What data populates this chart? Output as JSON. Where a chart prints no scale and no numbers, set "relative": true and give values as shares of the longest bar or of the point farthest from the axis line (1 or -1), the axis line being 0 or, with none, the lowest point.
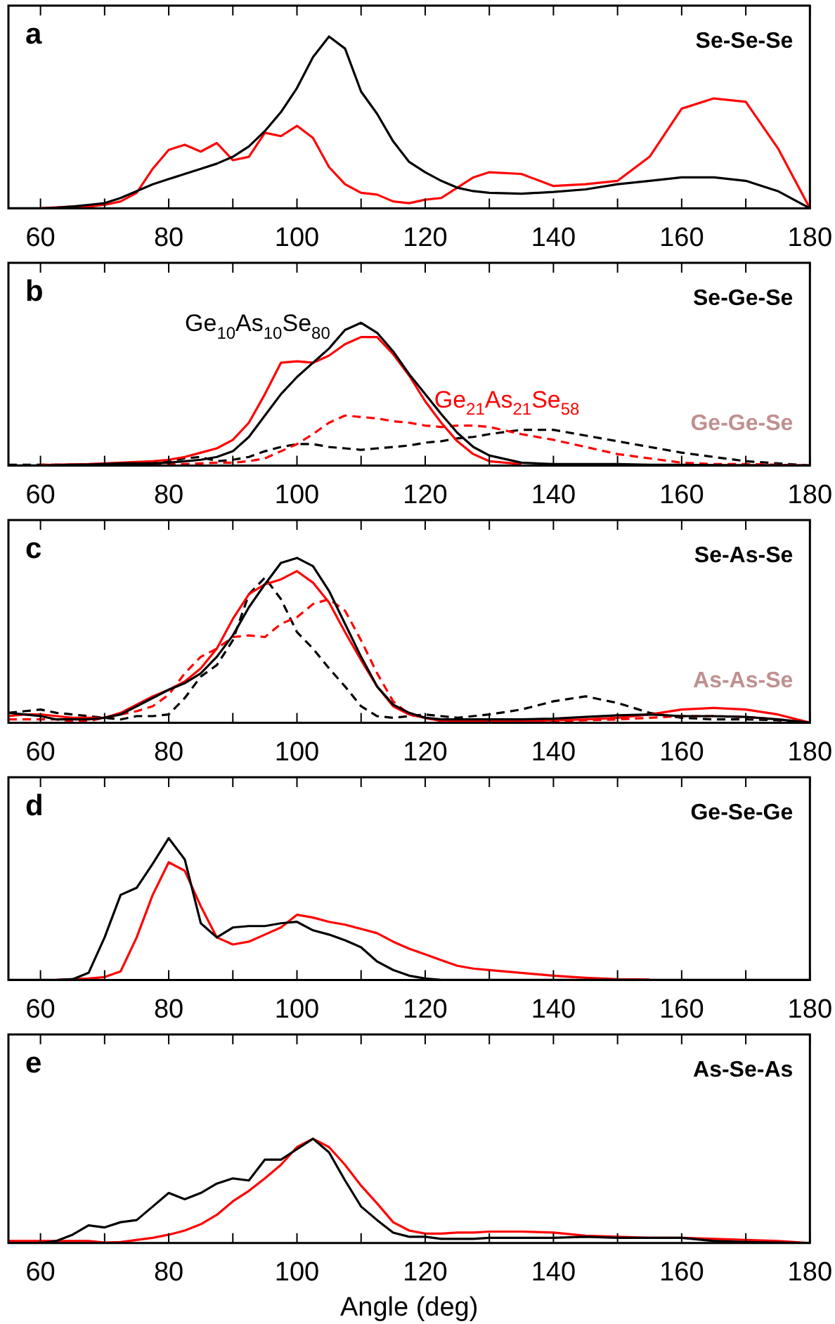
{
  "chart_data": [
    {
      "type": "line",
      "title": "a",
      "annotations": [
        "Se-Se-Se"
      ],
      "relative": true,
      "legend": false,
      "xlim": [
        55,
        180
      ],
      "xticks": [
        60,
        {
          "value": 70,
          "label": null
        },
        80,
        {
          "value": 90,
          "label": null
        },
        100,
        {
          "value": 110,
          "label": null
        },
        120,
        {
          "value": 130,
          "label": null
        },
        140,
        {
          "value": 150,
          "label": null
        },
        160,
        {
          "value": 170,
          "label": null
        },
        180
      ],
      "x": [
        55,
        57.5,
        60,
        62.5,
        65,
        67.5,
        70,
        72.5,
        75,
        77.5,
        80,
        82.5,
        85,
        87.5,
        90,
        92.5,
        95,
        97.5,
        100,
        102.5,
        105,
        107.5,
        110,
        112.5,
        115,
        117.5,
        120,
        122.5,
        125,
        127.5,
        130,
        135,
        140,
        145,
        150,
        155,
        160,
        165,
        170,
        175,
        180
      ],
      "series": [
        {
          "color": "#000000",
          "values": [
            0,
            0,
            0,
            0.003,
            0.01,
            0.02,
            0.03,
            0.06,
            0.1,
            0.14,
            0.17,
            0.2,
            0.23,
            0.26,
            0.3,
            0.36,
            0.45,
            0.56,
            0.7,
            0.88,
            1,
            0.93,
            0.68,
            0.55,
            0.39,
            0.27,
            0.21,
            0.16,
            0.12,
            0.1,
            0.09,
            0.085,
            0.095,
            0.11,
            0.14,
            0.16,
            0.18,
            0.18,
            0.16,
            0.1,
            0
          ]
        },
        {
          "color": "#ff0000",
          "values": [
            null,
            null,
            0,
            0.005,
            0.01,
            0.01,
            0.02,
            0.04,
            0.09,
            0.23,
            0.34,
            0.37,
            0.33,
            0.38,
            0.28,
            0.3,
            0.44,
            0.42,
            0.48,
            0.41,
            0.24,
            0.14,
            0.09,
            0.08,
            0.04,
            0.03,
            0.05,
            0.06,
            0.12,
            0.18,
            0.21,
            0.2,
            0.13,
            0.14,
            0.16,
            0.3,
            0.58,
            0.64,
            0.62,
            0.35,
            0
          ]
        }
      ]
    },
    {
      "type": "line",
      "title": "b",
      "annotations": [
        "Se-Ge-Se",
        "Ge-Ge-Se"
      ],
      "relative": true,
      "legend": false,
      "xlim": [
        55,
        180
      ],
      "xticks": [
        60,
        {
          "value": 70,
          "label": null
        },
        80,
        {
          "value": 90,
          "label": null
        },
        100,
        {
          "value": 110,
          "label": null
        },
        120,
        {
          "value": 130,
          "label": null
        },
        140,
        {
          "value": 150,
          "label": null
        },
        160,
        {
          "value": 170,
          "label": null
        },
        180
      ],
      "x": [
        55,
        57.5,
        60,
        62.5,
        65,
        67.5,
        70,
        72.5,
        75,
        77.5,
        80,
        82.5,
        85,
        87.5,
        90,
        92.5,
        95,
        97.5,
        100,
        102.5,
        105,
        107.5,
        110,
        112.5,
        115,
        117.5,
        120,
        122.5,
        125,
        127.5,
        130,
        135,
        140,
        145,
        150,
        155,
        160,
        165,
        170,
        175,
        180
      ],
      "series": [
        {
          "name": "Ge$_{10}$As$_{10}$Se$_{80}$",
          "color": "#000000",
          "values": [
            0,
            0,
            0,
            0.003,
            0.005,
            0.007,
            0.01,
            0.015,
            0.015,
            0.015,
            0.02,
            0.03,
            0.04,
            0.06,
            0.1,
            0.2,
            0.35,
            0.5,
            0.62,
            0.72,
            0.82,
            0.95,
            1,
            0.93,
            0.8,
            0.64,
            0.5,
            0.36,
            0.23,
            0.13,
            0.07,
            0.02,
            0.01,
            0.01,
            0.01,
            0.005,
            0.005,
            0.003,
            0.002,
            0.001,
            0
          ]
        },
        {
          "name": "Ge$_{21}$As$_{21}$Se$_{58}$",
          "color": "#ff0000",
          "values": [
            null,
            null,
            0.003,
            0.005,
            0.008,
            0.01,
            0.015,
            0.02,
            0.025,
            0.03,
            0.04,
            0.06,
            0.09,
            0.12,
            0.18,
            0.3,
            0.5,
            0.72,
            0.73,
            0.72,
            0.77,
            0.85,
            0.9,
            0.9,
            0.78,
            0.63,
            0.45,
            0.3,
            0.17,
            0.08,
            0.03,
            0.01,
            null,
            null,
            null,
            0.002,
            0.002,
            0.001,
            0.001,
            0.001,
            0
          ]
        },
        {
          "color": "#ff0000",
          "line_style": "dashed",
          "values": [
            null,
            null,
            0.005,
            0.005,
            0.005,
            0.005,
            0.005,
            0.005,
            0.005,
            0.005,
            0.01,
            0.01,
            0.015,
            0.02,
            0.02,
            0.03,
            0.05,
            0.1,
            0.15,
            0.22,
            0.3,
            0.35,
            0.34,
            0.33,
            0.31,
            0.3,
            0.28,
            0.27,
            0.28,
            0.28,
            0.27,
            0.22,
            0.18,
            0.13,
            0.08,
            0.05,
            0.02,
            0.01,
            0.01,
            0.005,
            0
          ]
        },
        {
          "color": "#000000",
          "line_style": "dashed",
          "values": [
            0.005,
            0.005,
            0.005,
            0.005,
            0.005,
            0.005,
            0.005,
            0.01,
            0.01,
            0.02,
            0.03,
            0.05,
            0.06,
            0.03,
            0.04,
            0.06,
            0.1,
            0.13,
            0.15,
            0.15,
            0.13,
            0.12,
            0.11,
            0.12,
            0.13,
            0.14,
            0.16,
            0.17,
            0.19,
            0.2,
            0.22,
            0.25,
            0.25,
            0.21,
            0.17,
            0.13,
            0.09,
            0.06,
            0.03,
            0.015,
            0
          ]
        }
      ]
    },
    {
      "type": "line",
      "title": "c",
      "annotations": [
        "Se-As-Se",
        "As-As-Se"
      ],
      "relative": true,
      "legend": false,
      "xlim": [
        55,
        180
      ],
      "xticks": [
        60,
        {
          "value": 70,
          "label": null
        },
        80,
        {
          "value": 90,
          "label": null
        },
        100,
        {
          "value": 110,
          "label": null
        },
        120,
        {
          "value": 130,
          "label": null
        },
        140,
        {
          "value": 150,
          "label": null
        },
        160,
        {
          "value": 170,
          "label": null
        },
        180
      ],
      "x": [
        55,
        57.5,
        60,
        62.5,
        65,
        67.5,
        70,
        72.5,
        75,
        77.5,
        80,
        82.5,
        85,
        87.5,
        90,
        92.5,
        95,
        97.5,
        100,
        102.5,
        105,
        107.5,
        110,
        112.5,
        115,
        117.5,
        120,
        122.5,
        125,
        127.5,
        130,
        135,
        140,
        145,
        150,
        155,
        160,
        165,
        170,
        175,
        180
      ],
      "series": [
        {
          "color": "#000000",
          "values": [
            0.06,
            0.05,
            0.04,
            0.02,
            0.02,
            0.02,
            0.03,
            0.05,
            0.1,
            0.15,
            0.2,
            0.24,
            0.3,
            0.4,
            0.53,
            0.7,
            0.84,
            0.97,
            1,
            0.95,
            0.8,
            0.6,
            0.4,
            0.22,
            0.11,
            0.06,
            0.03,
            0.02,
            0.02,
            0.02,
            0.02,
            0.02,
            0.025,
            0.035,
            0.045,
            0.05,
            0.04,
            0.04,
            0.035,
            0.02,
            0
          ]
        },
        {
          "color": "#ff0000",
          "values": [
            0.04,
            0.05,
            0.05,
            0.04,
            0.03,
            0.03,
            0.03,
            0.06,
            0.11,
            0.16,
            0.2,
            0.25,
            0.33,
            0.45,
            0.63,
            0.78,
            0.84,
            0.87,
            0.92,
            0.85,
            0.73,
            0.55,
            0.38,
            0.22,
            0.1,
            0.05,
            0.03,
            0.01,
            0.01,
            0.01,
            0.01,
            0.01,
            0.015,
            0.02,
            0.03,
            0.05,
            0.08,
            0.09,
            0.08,
            0.05,
            0
          ]
        },
        {
          "color": "#ff0000",
          "line_style": "dashed",
          "values": [
            0.02,
            0.02,
            0.02,
            0.02,
            0.01,
            0.01,
            0.03,
            0.05,
            0.07,
            0.1,
            0.17,
            0.3,
            0.4,
            0.45,
            0.52,
            0.53,
            0.52,
            0.6,
            0.64,
            0.72,
            0.75,
            0.68,
            0.5,
            0.3,
            0.13,
            0.05,
            0.03,
            0.01,
            0.005,
            0.005,
            0.005,
            0.005,
            0.01,
            0.015,
            0.02,
            0.03,
            0.04,
            0.04,
            0.035,
            0.02,
            0
          ]
        },
        {
          "color": "#000000",
          "line_style": "dashed",
          "values": [
            0.06,
            0.07,
            0.08,
            0.06,
            0.05,
            0.04,
            0.03,
            0.02,
            0.04,
            0.04,
            0.05,
            0.15,
            0.28,
            0.35,
            0.5,
            0.78,
            0.88,
            0.75,
            0.55,
            0.45,
            0.33,
            0.22,
            0.1,
            0.04,
            0.03,
            0.04,
            0.05,
            0.04,
            0.03,
            0.04,
            0.05,
            0.08,
            0.13,
            0.16,
            0.12,
            0.06,
            0.03,
            0.02,
            0.02,
            0.015,
            0
          ]
        }
      ]
    },
    {
      "type": "line",
      "title": "d",
      "annotations": [
        "Ge-Se-Ge"
      ],
      "relative": true,
      "legend": false,
      "xlim": [
        55,
        180
      ],
      "xticks": [
        60,
        {
          "value": 70,
          "label": null
        },
        80,
        {
          "value": 90,
          "label": null
        },
        100,
        {
          "value": 110,
          "label": null
        },
        120,
        {
          "value": 130,
          "label": null
        },
        140,
        {
          "value": 150,
          "label": null
        },
        160,
        {
          "value": 170,
          "label": null
        },
        180
      ],
      "x": [
        55,
        57.5,
        60,
        62.5,
        65,
        67.5,
        70,
        72.5,
        75,
        77.5,
        80,
        82.5,
        85,
        87.5,
        90,
        92.5,
        95,
        97.5,
        100,
        102.5,
        105,
        107.5,
        110,
        112.5,
        115,
        117.5,
        120,
        122.5,
        125,
        127.5,
        130,
        135,
        140,
        145,
        150,
        155,
        160,
        165,
        170,
        175,
        180
      ],
      "series": [
        {
          "color": "#000000",
          "values": [
            0,
            0,
            0,
            0,
            0.005,
            0.05,
            0.3,
            0.6,
            0.65,
            0.82,
            1,
            0.85,
            0.4,
            0.3,
            0.37,
            0.38,
            0.38,
            0.4,
            0.41,
            0.35,
            0.32,
            0.28,
            0.23,
            0.13,
            0.07,
            0.03,
            0.01,
            0,
            0,
            0,
            0,
            0,
            0,
            0,
            0,
            0,
            0,
            0,
            0,
            0,
            0
          ]
        },
        {
          "color": "#ff0000",
          "values": [
            null,
            null,
            null,
            0,
            0.005,
            0.01,
            0.02,
            0.06,
            0.3,
            0.6,
            0.83,
            0.77,
            0.52,
            0.3,
            0.25,
            0.27,
            0.32,
            0.37,
            0.46,
            0.44,
            0.41,
            0.39,
            0.36,
            0.33,
            0.27,
            0.22,
            0.18,
            0.14,
            0.1,
            0.08,
            0.07,
            0.05,
            0.03,
            0.015,
            0.005,
            0.003,
            null,
            null,
            null,
            null,
            null
          ]
        }
      ]
    },
    {
      "type": "line",
      "title": "e",
      "xlabel": "Angle (deg)",
      "annotations": [
        "As-Se-As"
      ],
      "relative": true,
      "legend": false,
      "xlim": [
        55,
        180
      ],
      "xticks": [
        60,
        {
          "value": 70,
          "label": null
        },
        80,
        {
          "value": 90,
          "label": null
        },
        100,
        {
          "value": 110,
          "label": null
        },
        120,
        {
          "value": 130,
          "label": null
        },
        140,
        {
          "value": 150,
          "label": null
        },
        160,
        {
          "value": 170,
          "label": null
        },
        180
      ],
      "x": [
        55,
        57.5,
        60,
        62.5,
        65,
        67.5,
        70,
        72.5,
        75,
        77.5,
        80,
        82.5,
        85,
        87.5,
        90,
        92.5,
        95,
        97.5,
        100,
        102.5,
        105,
        107.5,
        110,
        112.5,
        115,
        117.5,
        120,
        122.5,
        125,
        127.5,
        130,
        135,
        140,
        145,
        150,
        155,
        160,
        165,
        170,
        175,
        180
      ],
      "series": [
        {
          "color": "#000000",
          "values": [
            0,
            0,
            0,
            0.02,
            0.08,
            0.17,
            0.15,
            0.2,
            0.22,
            0.35,
            0.48,
            0.42,
            0.48,
            0.57,
            0.62,
            0.6,
            0.8,
            0.8,
            0.9,
            1,
            0.87,
            0.6,
            0.35,
            0.22,
            0.1,
            0.06,
            0.06,
            0.04,
            0.04,
            0.04,
            0.05,
            0.05,
            0.05,
            0.06,
            0.05,
            0.05,
            0.05,
            0.02,
            0.01,
            0.005,
            0
          ]
        },
        {
          "color": "#ff0000",
          "values": [
            0.02,
            0.02,
            0.02,
            0.02,
            0.02,
            0.02,
            0.005,
            0.01,
            0.03,
            0.05,
            0.08,
            0.12,
            0.18,
            0.27,
            0.4,
            0.5,
            0.62,
            0.75,
            0.92,
            1,
            0.92,
            0.75,
            0.55,
            0.38,
            0.2,
            0.12,
            0.09,
            0.09,
            0.1,
            0.1,
            0.11,
            0.11,
            0.1,
            0.07,
            0.06,
            0.05,
            0.05,
            0.04,
            0.03,
            0.02,
            0
          ]
        }
      ]
    }
  ]
}
